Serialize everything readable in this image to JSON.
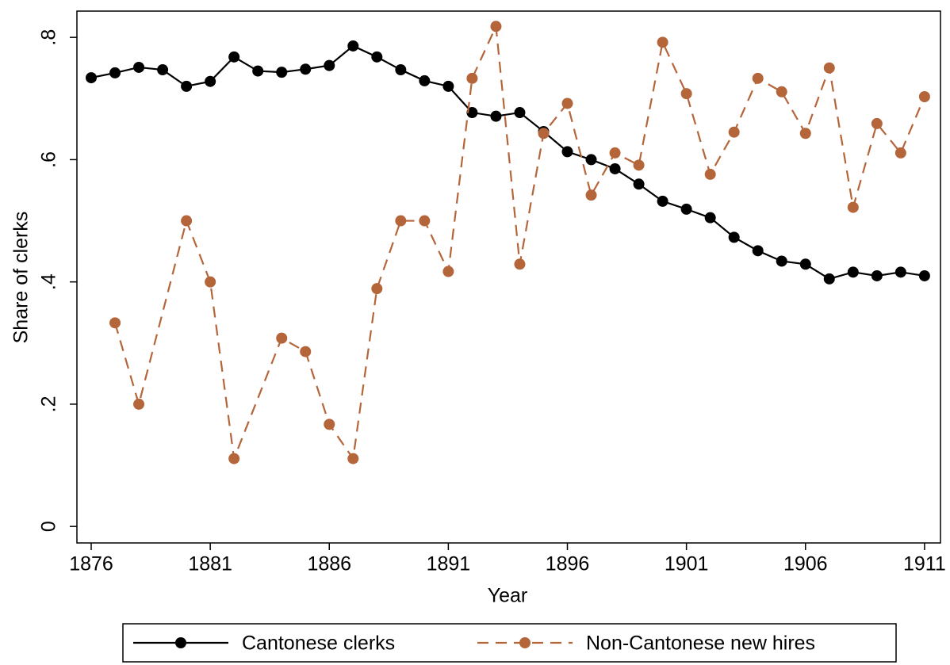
{
  "chart_data": {
    "type": "line",
    "x_label": "Year",
    "y_label": "Share of clerks",
    "xlim": [
      1875.4,
      1911.67
    ],
    "ylim": [
      -0.027,
      0.843
    ],
    "xticks": [
      1876,
      1881,
      1886,
      1891,
      1896,
      1901,
      1906,
      1911
    ],
    "yticks": [
      0,
      {
        "value": 0.2,
        "label": ".2"
      },
      {
        "value": 0.4,
        "label": ".4"
      },
      {
        "value": 0.6,
        "label": ".6"
      },
      {
        "value": 0.8,
        "label": ".8"
      }
    ],
    "series": [
      {
        "name": "Cantonese clerks",
        "color": "#000000",
        "dash": false,
        "x": [
          1876,
          1877,
          1878,
          1879,
          1880,
          1881,
          1882,
          1883,
          1884,
          1885,
          1886,
          1887,
          1888,
          1889,
          1890,
          1891,
          1892,
          1893,
          1894,
          1895,
          1896,
          1897,
          1898,
          1899,
          1900,
          1901,
          1902,
          1903,
          1904,
          1905,
          1906,
          1907,
          1908,
          1909,
          1910,
          1911
        ],
        "values": [
          0.734,
          0.742,
          0.751,
          0.747,
          0.72,
          0.728,
          0.768,
          0.745,
          0.743,
          0.748,
          0.754,
          0.786,
          0.768,
          0.747,
          0.729,
          0.72,
          0.677,
          0.671,
          0.677,
          0.646,
          0.613,
          0.6,
          0.585,
          0.56,
          0.532,
          0.519,
          0.505,
          0.473,
          0.451,
          0.434,
          0.429,
          0.405,
          0.416,
          0.41,
          0.416,
          0.41
        ]
      },
      {
        "name": "Non-Cantonese new hires",
        "color": "#b5653a",
        "dash": true,
        "x": [
          1877,
          1878,
          1880,
          1881,
          1882,
          1884,
          1885,
          1886,
          1887,
          1888,
          1889,
          1890,
          1891,
          1892,
          1893,
          1894,
          1895,
          1896,
          1897,
          1898,
          1899,
          1900,
          1901,
          1902,
          1903,
          1904,
          1905,
          1906,
          1907,
          1908,
          1909,
          1910,
          1911
        ],
        "values": [
          0.333,
          0.2,
          0.5,
          0.4,
          0.111,
          0.308,
          0.286,
          0.167,
          0.111,
          0.389,
          0.5,
          0.5,
          0.417,
          0.733,
          0.818,
          0.429,
          0.643,
          0.692,
          0.542,
          0.611,
          0.591,
          0.792,
          0.708,
          0.576,
          0.645,
          0.733,
          0.711,
          0.643,
          0.75,
          0.522,
          0.659,
          0.611,
          0.703
        ]
      }
    ]
  }
}
